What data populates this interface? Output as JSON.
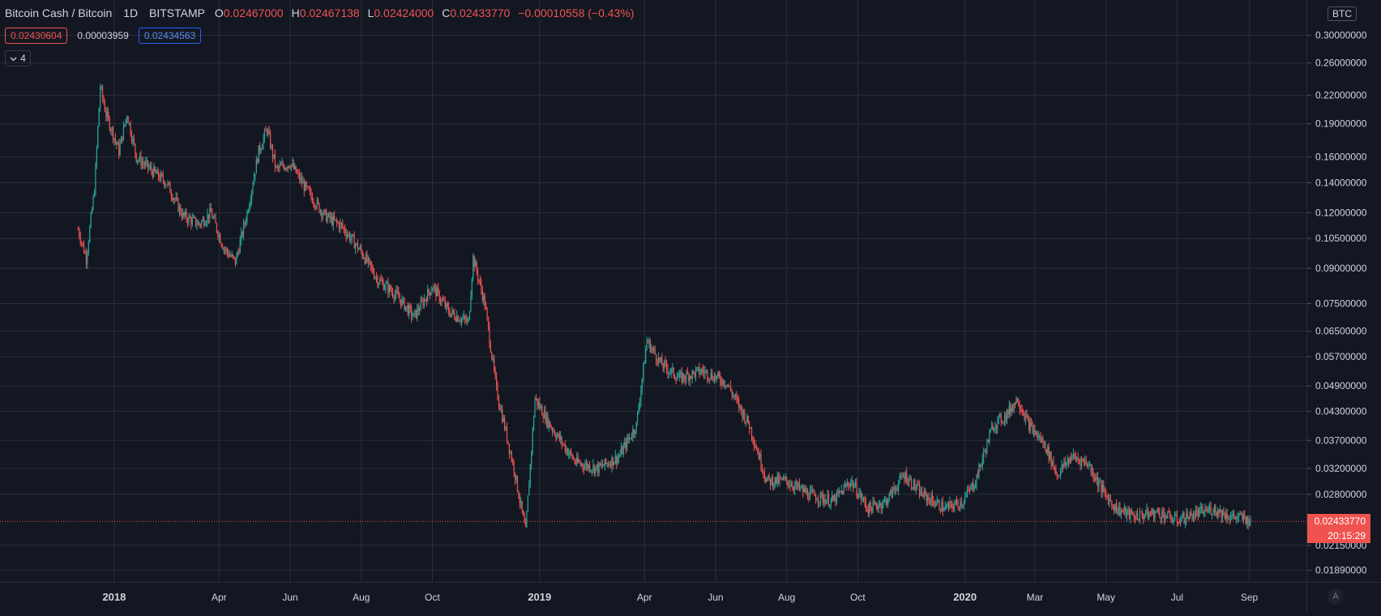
{
  "header": {
    "symbol": "Bitcoin Cash / Bitcoin",
    "interval": "1D",
    "exchange": "BITSTAMP",
    "open_label": "O",
    "open": "0.02467000",
    "high_label": "H",
    "high": "0.02467138",
    "low_label": "L",
    "low": "0.02424000",
    "close_label": "C",
    "close": "0.02433770",
    "change": "−0.00010558 (−0.43%)"
  },
  "quote": {
    "bid": "0.02430604",
    "spread": "0.00003959",
    "ask": "0.02434563"
  },
  "collapse_button": {
    "icon": "chevron-down-icon",
    "count": "4"
  },
  "currency_badge": "BTC",
  "last_price": {
    "value": "0.02433770",
    "countdown": "20:15:29"
  },
  "corner_button": {
    "label": "A"
  },
  "colors": {
    "up": "#26a69a",
    "down": "#ef5350",
    "background": "#131722",
    "grid": "#2a2e39"
  },
  "chart_data": {
    "type": "candlestick",
    "scale": "log",
    "price_axis_labels": [
      "0.30000000",
      "0.26000000",
      "0.22000000",
      "0.19000000",
      "0.16000000",
      "0.14000000",
      "0.12000000",
      "0.10500000",
      "0.09000000",
      "0.07500000",
      "0.06500000",
      "0.05700000",
      "0.04900000",
      "0.04300000",
      "0.03700000",
      "0.03200000",
      "0.02800000",
      "0.02150000",
      "0.01890000"
    ],
    "price_axis_values": [
      0.3,
      0.26,
      0.22,
      0.19,
      0.16,
      0.14,
      0.12,
      0.105,
      0.09,
      0.075,
      0.065,
      0.057,
      0.049,
      0.043,
      0.037,
      0.032,
      0.028,
      0.0215,
      0.0189
    ],
    "time_axis_labels": [
      "2018",
      "Apr",
      "Jun",
      "Aug",
      "Oct",
      "2019",
      "Apr",
      "Jun",
      "Aug",
      "Oct",
      "2020",
      "Mar",
      "May",
      "Jul",
      "Sep"
    ],
    "time_axis_dates": [
      "2018-01-01",
      "2018-04-01",
      "2018-06-01",
      "2018-08-01",
      "2018-10-01",
      "2019-01-01",
      "2019-04-01",
      "2019-06-01",
      "2019-08-01",
      "2019-10-01",
      "2020-01-01",
      "2020-03-01",
      "2020-05-01",
      "2020-07-01",
      "2020-09-01"
    ],
    "last_close": 0.0243377,
    "close_path": [
      [
        "2017-12-01",
        0.11
      ],
      [
        "2017-12-08",
        0.095
      ],
      [
        "2017-12-15",
        0.135
      ],
      [
        "2017-12-20",
        0.23
      ],
      [
        "2017-12-25",
        0.2
      ],
      [
        "2018-01-05",
        0.165
      ],
      [
        "2018-01-12",
        0.2
      ],
      [
        "2018-01-20",
        0.16
      ],
      [
        "2018-02-01",
        0.15
      ],
      [
        "2018-02-15",
        0.14
      ],
      [
        "2018-03-01",
        0.118
      ],
      [
        "2018-03-15",
        0.113
      ],
      [
        "2018-03-25",
        0.12
      ],
      [
        "2018-04-05",
        0.1
      ],
      [
        "2018-04-15",
        0.093
      ],
      [
        "2018-04-25",
        0.12
      ],
      [
        "2018-05-05",
        0.165
      ],
      [
        "2018-05-12",
        0.185
      ],
      [
        "2018-05-20",
        0.15
      ],
      [
        "2018-06-01",
        0.155
      ],
      [
        "2018-06-15",
        0.135
      ],
      [
        "2018-07-01",
        0.118
      ],
      [
        "2018-07-15",
        0.112
      ],
      [
        "2018-08-01",
        0.098
      ],
      [
        "2018-08-15",
        0.085
      ],
      [
        "2018-09-01",
        0.078
      ],
      [
        "2018-09-15",
        0.07
      ],
      [
        "2018-10-01",
        0.082
      ],
      [
        "2018-10-15",
        0.072
      ],
      [
        "2018-11-01",
        0.068
      ],
      [
        "2018-11-05",
        0.095
      ],
      [
        "2018-11-15",
        0.075
      ],
      [
        "2018-11-25",
        0.048
      ],
      [
        "2018-12-10",
        0.032
      ],
      [
        "2018-12-20",
        0.023
      ],
      [
        "2018-12-28",
        0.046
      ],
      [
        "2019-01-10",
        0.04
      ],
      [
        "2019-02-01",
        0.033
      ],
      [
        "2019-02-20",
        0.032
      ],
      [
        "2019-03-10",
        0.034
      ],
      [
        "2019-03-25",
        0.04
      ],
      [
        "2019-04-03",
        0.062
      ],
      [
        "2019-04-15",
        0.055
      ],
      [
        "2019-05-01",
        0.051
      ],
      [
        "2019-05-20",
        0.053
      ],
      [
        "2019-06-10",
        0.05
      ],
      [
        "2019-06-30",
        0.04
      ],
      [
        "2019-07-15",
        0.03
      ],
      [
        "2019-08-01",
        0.03
      ],
      [
        "2019-08-20",
        0.028
      ],
      [
        "2019-09-10",
        0.027
      ],
      [
        "2019-09-25",
        0.03
      ],
      [
        "2019-10-10",
        0.026
      ],
      [
        "2019-10-25",
        0.027
      ],
      [
        "2019-11-10",
        0.031
      ],
      [
        "2019-11-25",
        0.028
      ],
      [
        "2019-12-15",
        0.026
      ],
      [
        "2019-12-30",
        0.027
      ],
      [
        "2020-01-10",
        0.03
      ],
      [
        "2020-01-25",
        0.04
      ],
      [
        "2020-02-05",
        0.042
      ],
      [
        "2020-02-15",
        0.046
      ],
      [
        "2020-02-25",
        0.04
      ],
      [
        "2020-03-10",
        0.036
      ],
      [
        "2020-03-20",
        0.031
      ],
      [
        "2020-04-01",
        0.034
      ],
      [
        "2020-04-15",
        0.033
      ],
      [
        "2020-04-30",
        0.028
      ],
      [
        "2020-05-10",
        0.026
      ],
      [
        "2020-05-25",
        0.025
      ],
      [
        "2020-06-15",
        0.0255
      ],
      [
        "2020-06-30",
        0.0245
      ],
      [
        "2020-07-15",
        0.0252
      ],
      [
        "2020-08-01",
        0.026
      ],
      [
        "2020-08-15",
        0.025
      ],
      [
        "2020-08-28",
        0.0247
      ],
      [
        "2020-09-02",
        0.0243377
      ]
    ]
  }
}
